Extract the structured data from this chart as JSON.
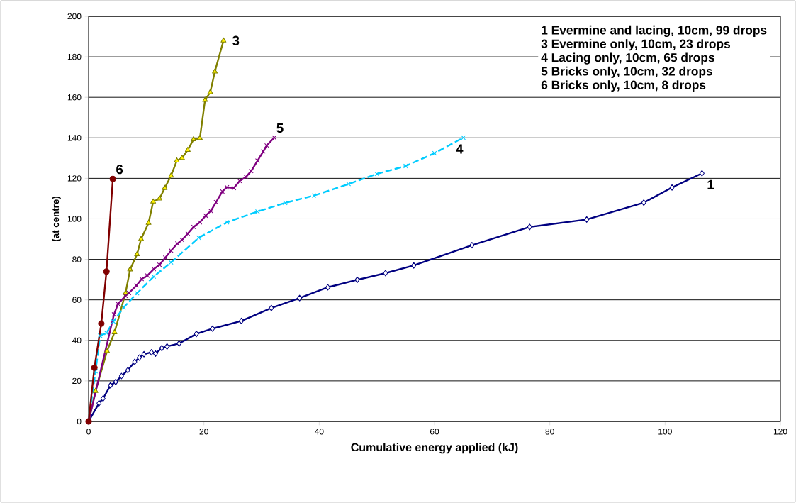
{
  "chart_data": {
    "type": "line",
    "xlabel": "Cumulative energy applied (kJ)",
    "ylabel": "(at centre)",
    "xlim": [
      0,
      120
    ],
    "ylim": [
      0,
      200
    ],
    "xticks": [
      0,
      20,
      40,
      60,
      80,
      100,
      120
    ],
    "yticks": [
      0,
      20,
      40,
      60,
      80,
      100,
      120,
      140,
      160,
      180,
      200
    ],
    "grid": "y",
    "annotations": [
      "1   Evermine and lacing, 10cm,  99 drops",
      "3   Evermine only,  10cm,  23 drops",
      "4   Lacing only,  10cm,  65 drops",
      "5   Bricks only,  10cm,  32 drops",
      "6   Bricks only,  10cm,  8 drops"
    ],
    "series": [
      {
        "name": "1",
        "color": "#000080",
        "marker": "diamond",
        "line_style": "solid",
        "x": [
          0,
          1.8,
          2.5,
          3.8,
          4.7,
          5.7,
          6.8,
          8.0,
          8.8,
          9.6,
          10.9,
          11.6,
          12.7,
          13.6,
          15.7,
          18.7,
          21.5,
          26.5,
          31.7,
          36.6,
          41.5,
          46.6,
          51.5,
          56.4,
          66.5,
          76.5,
          86.4,
          96.3,
          101.2,
          106.4
        ],
        "values": [
          0,
          9,
          11.3,
          17.8,
          19.5,
          22.4,
          25.3,
          29.4,
          31.5,
          33.2,
          34.1,
          33.5,
          36.2,
          37,
          38.5,
          43.2,
          45.8,
          49.6,
          56,
          60.9,
          66.2,
          69.9,
          73.2,
          77,
          87,
          96,
          99.7,
          108,
          115.5,
          122.5
        ]
      },
      {
        "name": "3",
        "color": "#808000",
        "marker": "triangle",
        "line_style": "solid",
        "x": [
          0,
          1.2,
          3.2,
          4.5,
          6.4,
          7.2,
          8.4,
          9.1,
          10.4,
          11.2,
          12.3,
          13.2,
          14.3,
          15.3,
          16.2,
          17.2,
          18.2,
          19.3,
          20.2,
          21.1,
          21.9,
          23.4
        ],
        "values": [
          0,
          15,
          34.7,
          44,
          63.3,
          75,
          82.5,
          90,
          98,
          108.5,
          110,
          115.2,
          121.3,
          128.7,
          130,
          134,
          139.2,
          139.8,
          158.7,
          162.5,
          172.7,
          188
        ]
      },
      {
        "name": "4",
        "color": "#00ccff",
        "marker": "cross",
        "line_style": "dashed",
        "x": [
          0,
          1.2,
          2.0,
          3.1,
          4.3,
          6.1,
          8.4,
          11.3,
          14.3,
          19.1,
          24.0,
          29.3,
          34.1,
          39.1,
          45.1,
          50.0,
          55.0,
          60.0,
          65.0
        ],
        "values": [
          0,
          24.8,
          42.3,
          43.7,
          49.3,
          56.3,
          63.3,
          71.5,
          78.5,
          90.7,
          98.3,
          103.6,
          107.9,
          111.5,
          117.2,
          122.2,
          126.1,
          132.4,
          140.1
        ]
      },
      {
        "name": "5",
        "color": "#800080",
        "marker": "cross",
        "line_style": "solid",
        "x": [
          0,
          4.4,
          5.1,
          6.4,
          7.0,
          8.3,
          9.2,
          10.2,
          11.3,
          12.3,
          13.3,
          14.3,
          15.4,
          16.2,
          17.2,
          18.2,
          19.3,
          20.3,
          21.2,
          22.1,
          23.2,
          24.0,
          25.2,
          26.2,
          27.3,
          28.2,
          29.3,
          30.3,
          30.9,
          32.2
        ],
        "values": [
          0,
          52.8,
          58,
          62,
          63.4,
          67.1,
          70.3,
          72,
          75.2,
          77.3,
          80.8,
          84.3,
          87.8,
          89.6,
          92.7,
          96,
          98.3,
          101.6,
          103.9,
          108.2,
          113.5,
          115.6,
          115.2,
          118.7,
          120.7,
          123.6,
          128.7,
          133.3,
          136.2,
          140.1
        ]
      },
      {
        "name": "6",
        "color": "#800000",
        "marker": "circle",
        "line_style": "solid",
        "x": [
          0,
          1.0,
          2.2,
          3.1,
          4.2
        ],
        "values": [
          0,
          26.5,
          48.3,
          74,
          119.7
        ]
      }
    ]
  }
}
